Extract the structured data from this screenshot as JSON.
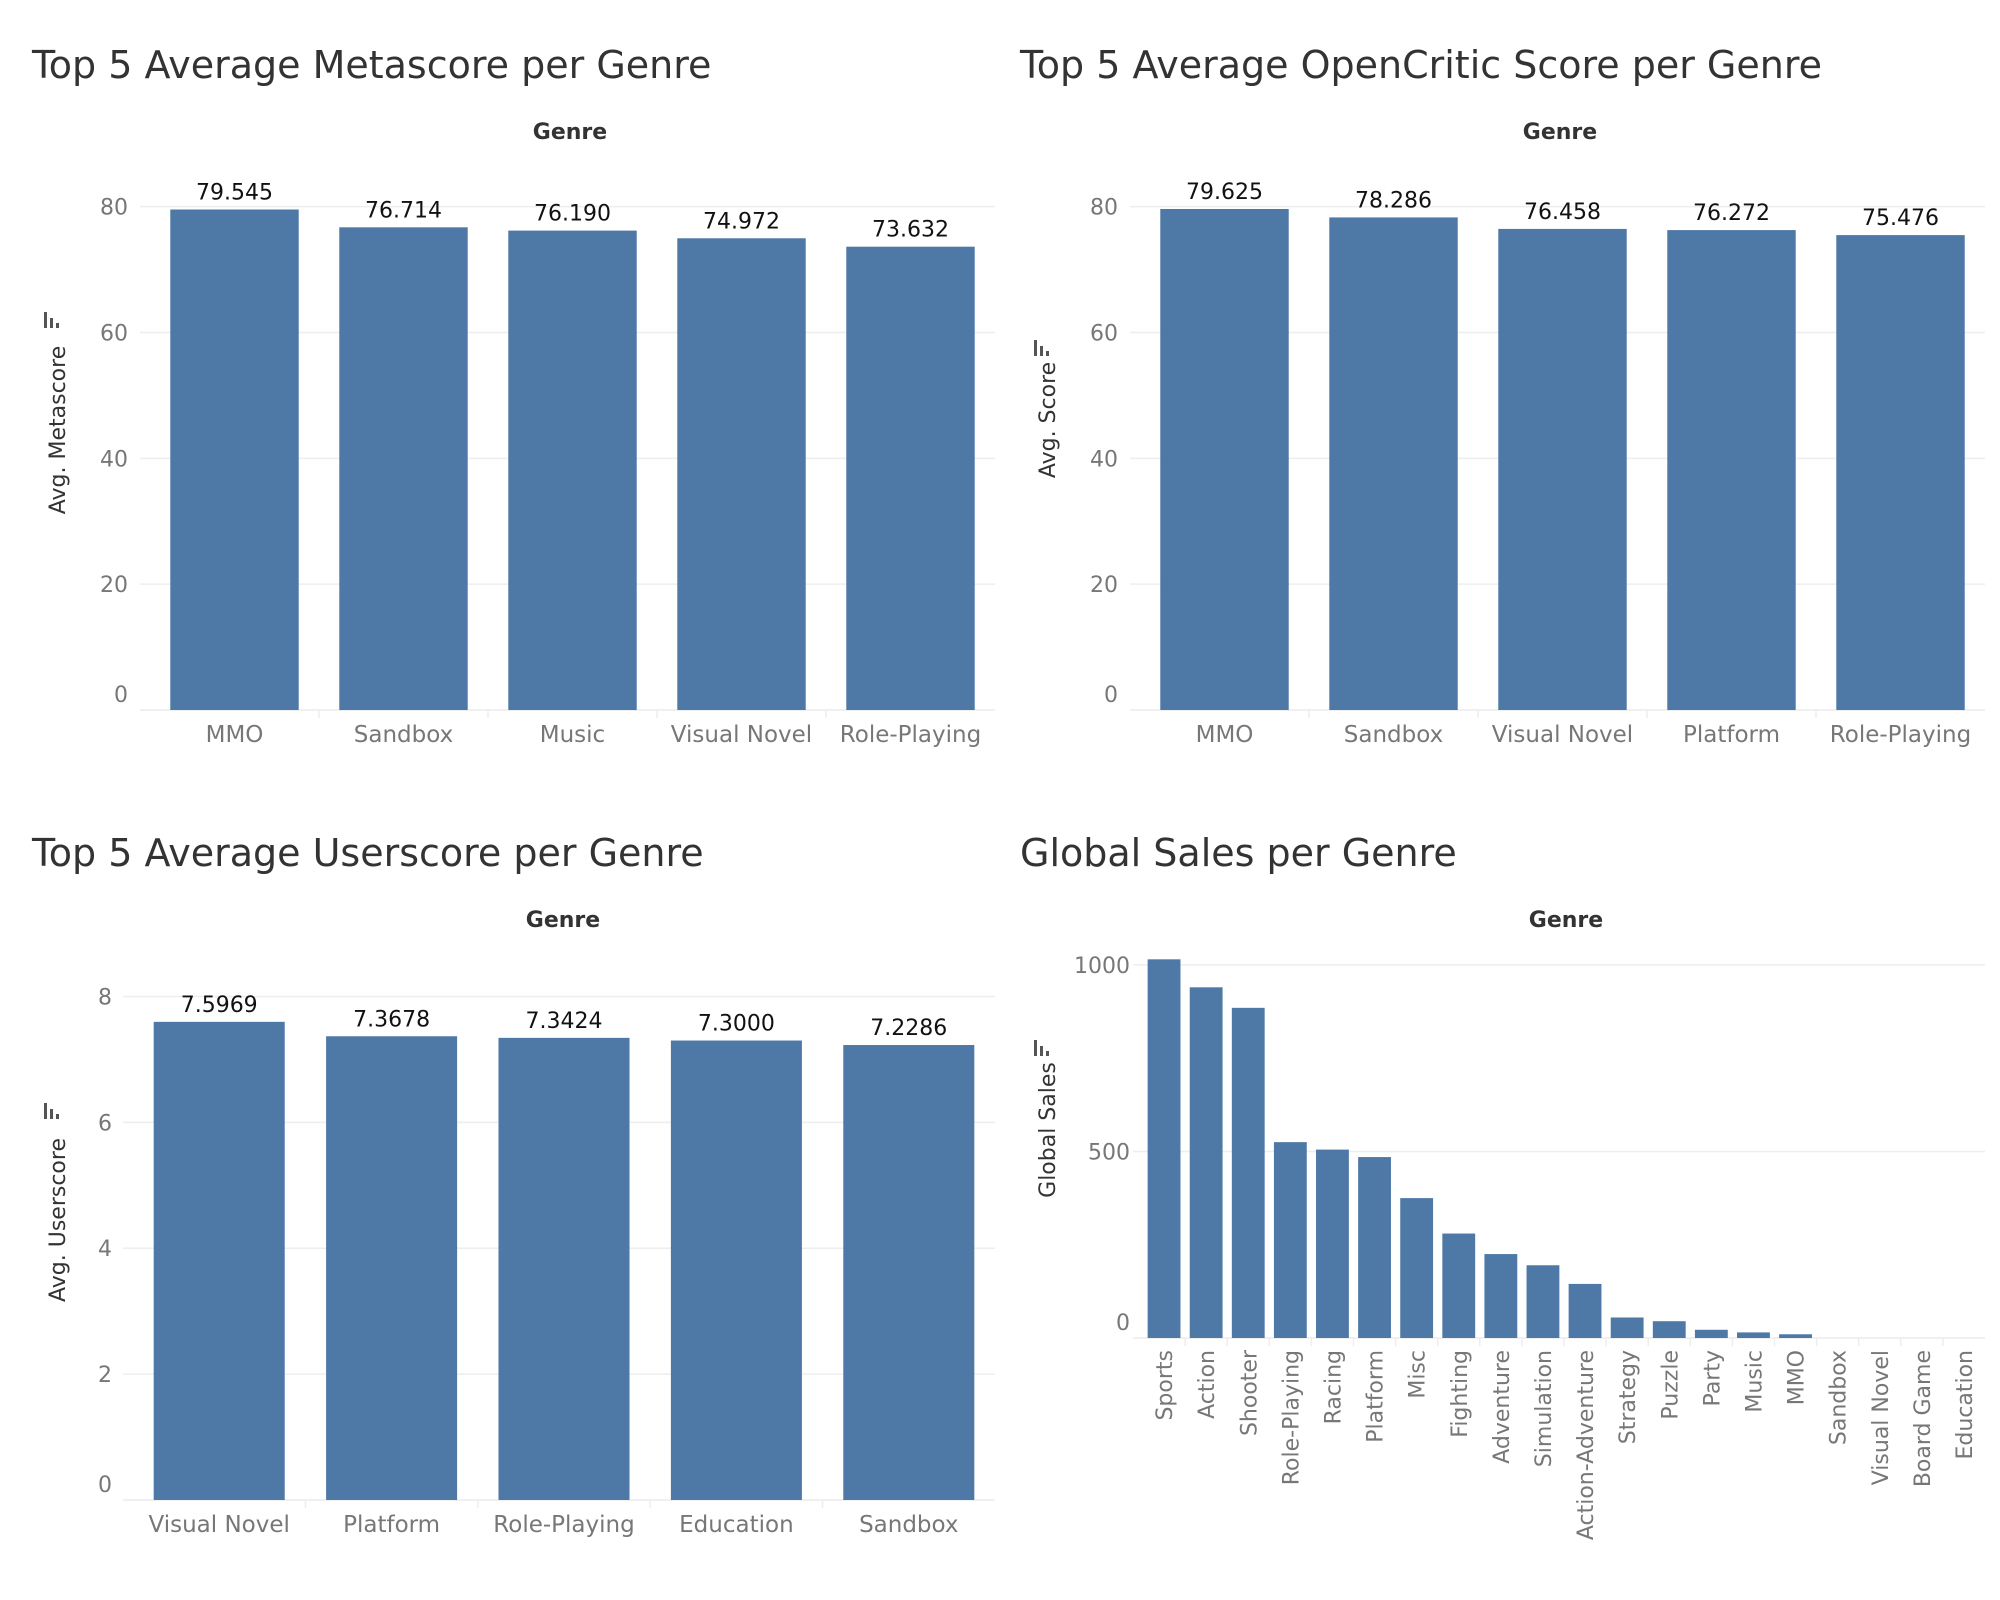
{
  "colors": {
    "bar": "#4e79a7",
    "title": "#333333",
    "tick": "#777777",
    "axis_title": "#333333",
    "grid": "#eeeeee",
    "label": "#111111"
  },
  "chart_data": [
    {
      "type": "bar",
      "title": "Top 5 Average Metascore per Genre",
      "xlabel": "Genre",
      "ylabel": "Avg. Metascore",
      "categories": [
        "MMO",
        "Sandbox",
        "Music",
        "Visual Novel",
        "Role-Playing"
      ],
      "values": [
        79.545,
        76.714,
        76.19,
        74.972,
        73.632
      ],
      "value_labels": [
        "79.545",
        "76.714",
        "76.190",
        "74.972",
        "73.632"
      ],
      "yticks": [
        0,
        20,
        40,
        60,
        80
      ],
      "ylim": [
        0,
        89
      ],
      "grid": true
    },
    {
      "type": "bar",
      "title": "Top 5 Average OpenCritic Score per Genre",
      "xlabel": "Genre",
      "ylabel": "Avg. Score",
      "categories": [
        "MMO",
        "Sandbox",
        "Visual Novel",
        "Platform",
        "Role-Playing"
      ],
      "values": [
        79.625,
        78.286,
        76.458,
        76.272,
        75.476
      ],
      "value_labels": [
        "79.625",
        "78.286",
        "76.458",
        "76.272",
        "75.476"
      ],
      "yticks": [
        0,
        20,
        40,
        60,
        80
      ],
      "ylim": [
        0,
        89
      ],
      "grid": true
    },
    {
      "type": "bar",
      "title": "Top 5 Average Userscore per Genre",
      "xlabel": "Genre",
      "ylabel": "Avg. Userscore",
      "categories": [
        "Visual Novel",
        "Platform",
        "Role-Playing",
        "Education",
        "Sandbox"
      ],
      "values": [
        7.5969,
        7.3678,
        7.3424,
        7.3,
        7.2286
      ],
      "value_labels": [
        "7.5969",
        "7.3678",
        "7.3424",
        "7.3000",
        "7.2286"
      ],
      "yticks": [
        0,
        2,
        4,
        6,
        8
      ],
      "ylim": [
        0,
        8.5
      ],
      "grid": true
    },
    {
      "type": "bar",
      "title": "Global Sales per Genre",
      "xlabel": "Genre",
      "ylabel": "Global Sales",
      "categories": [
        "Sports",
        "Action",
        "Shooter",
        "Role-Playing",
        "Racing",
        "Platform",
        "Misc",
        "Fighting",
        "Adventure",
        "Simulation",
        "Action-Adventure",
        "Strategy",
        "Puzzle",
        "Party",
        "Music",
        "MMO",
        "Sandbox",
        "Visual Novel",
        "Board Game",
        "Education"
      ],
      "values": [
        1015,
        940,
        885,
        525,
        505,
        485,
        375,
        280,
        225,
        195,
        145,
        55,
        45,
        22,
        15,
        10,
        0,
        0,
        0,
        0
      ],
      "value_labels": [],
      "yticks": [
        0,
        500,
        1000
      ],
      "ylim": [
        0,
        1040
      ],
      "grid": true
    }
  ]
}
